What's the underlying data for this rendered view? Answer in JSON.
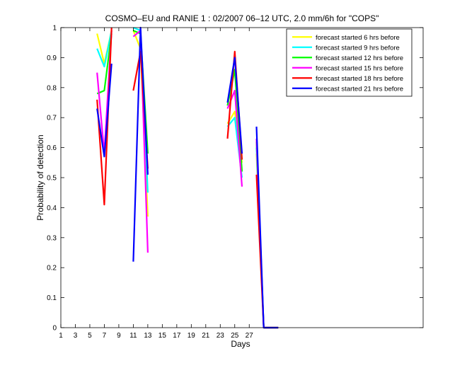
{
  "chart_data": {
    "type": "line",
    "title": "COSMO–EU and RANIE 1 : 02/2007 06–12 UTC, 2.0 mm/6h for \"COPS\"",
    "xlabel": "Days",
    "ylabel": "Probability of detection",
    "xlim": [
      1,
      51
    ],
    "ylim": [
      0,
      1
    ],
    "xticks": [
      1,
      3,
      5,
      7,
      9,
      11,
      13,
      15,
      17,
      19,
      21,
      23,
      25,
      27
    ],
    "yticks": [
      0,
      0.1,
      0.2,
      0.3,
      0.4,
      0.5,
      0.6,
      0.7,
      0.8,
      0.9,
      1
    ],
    "ytick_labels": [
      "0",
      "0.1",
      "0.2",
      "0.3",
      "0.4",
      "0.5",
      "0.6",
      "0.7",
      "0.8",
      "0.9",
      "1"
    ],
    "grid": false,
    "legend_position": "top-right",
    "series": [
      {
        "name": "forecast started 6 hrs before",
        "color": "#ffff00",
        "x": [
          6,
          7,
          8,
          null,
          11,
          12,
          13,
          null,
          24,
          25,
          26,
          null,
          28,
          29,
          30,
          31
        ],
        "y": [
          0.98,
          0.88,
          0.99,
          null,
          0.99,
          0.93,
          0.37,
          null,
          0.68,
          0.72,
          0.55,
          null,
          0.58,
          0.0,
          0.0,
          0.0
        ]
      },
      {
        "name": "forecast started 9 hrs before",
        "color": "#00ffff",
        "x": [
          6,
          7,
          8,
          null,
          11,
          12,
          13,
          null,
          24,
          25,
          26,
          null,
          28,
          29,
          30,
          31
        ],
        "y": [
          0.93,
          0.87,
          0.99,
          null,
          1.0,
          0.99,
          0.45,
          null,
          0.67,
          0.7,
          0.5,
          null,
          0.6,
          0.0,
          0.0,
          0.0
        ]
      },
      {
        "name": "forecast started 12 hrs before",
        "color": "#00ff00",
        "x": [
          6,
          7,
          8,
          null,
          11,
          12,
          13,
          null,
          24,
          25,
          26,
          null,
          28,
          29,
          30,
          31
        ],
        "y": [
          0.78,
          0.79,
          0.98,
          null,
          0.99,
          0.98,
          0.58,
          null,
          0.74,
          0.86,
          0.52,
          null,
          0.62,
          0.0,
          0.0,
          0.0
        ]
      },
      {
        "name": "forecast started 15 hrs before",
        "color": "#ff00ff",
        "x": [
          6,
          7,
          8,
          null,
          11,
          12,
          13,
          null,
          24,
          25,
          26,
          null,
          28,
          29,
          30,
          31
        ],
        "y": [
          0.85,
          0.58,
          0.99,
          null,
          0.97,
          0.99,
          0.25,
          null,
          0.73,
          0.79,
          0.47,
          null,
          0.63,
          0.0,
          0.0,
          0.0
        ]
      },
      {
        "name": "forecast started 18 hrs before",
        "color": "#ff0000",
        "x": [
          6,
          7,
          8,
          null,
          11,
          12,
          13,
          null,
          24,
          25,
          26,
          null,
          28,
          29,
          30,
          31
        ],
        "y": [
          0.76,
          0.41,
          1.0,
          null,
          0.79,
          0.92,
          0.53,
          null,
          0.63,
          0.92,
          0.56,
          null,
          0.51,
          0.0,
          0.0,
          0.0
        ]
      },
      {
        "name": "forecast started 21 hrs before",
        "color": "#0000ff",
        "x": [
          6,
          7,
          8,
          null,
          11,
          12,
          13,
          null,
          24,
          25,
          26,
          null,
          28,
          29,
          30,
          31
        ],
        "y": [
          0.73,
          0.57,
          0.88,
          null,
          0.22,
          1.0,
          0.51,
          null,
          0.75,
          0.9,
          0.58,
          null,
          0.67,
          0.0,
          0.0,
          0.0
        ]
      }
    ]
  }
}
